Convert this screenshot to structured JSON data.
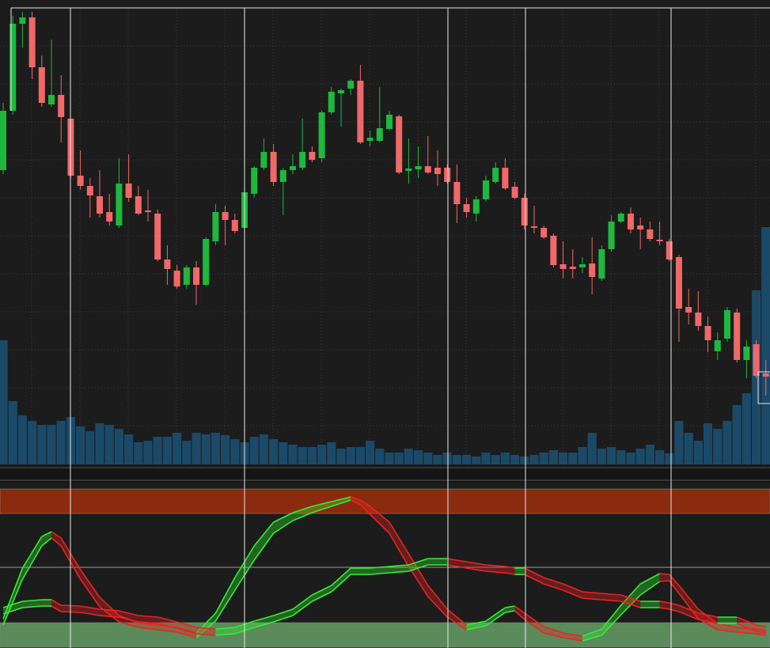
{
  "chart_data": [
    {
      "type": "candlestick",
      "xlim": [
        -0.33,
        79.43
      ],
      "ylim": [
        13,
        590
      ],
      "y2lim": [
        0,
        577
      ],
      "up_color": "#1fb83f",
      "down_color": "#f06868",
      "volume_color": "#1a4a68",
      "grid": true,
      "open": [
        385,
        460,
        570,
        578,
        515,
        468,
        480,
        450,
        378,
        365,
        352,
        332,
        315,
        368,
        352,
        334,
        330,
        272,
        258,
        240,
        262,
        240,
        295,
        332,
        322,
        312,
        355,
        388,
        408,
        370,
        385,
        388,
        408,
        400,
        458,
        482,
        488,
        498,
        422,
        422,
        437,
        453,
        384,
        386,
        390,
        388,
        388,
        370,
        342,
        330,
        348,
        370,
        388,
        364,
        350,
        314,
        312,
        302,
        266,
        263,
        262,
        267,
        248,
        285,
        320,
        330,
        315,
        310,
        297,
        295,
        275,
        212,
        205,
        188,
        156,
        172,
        205,
        145,
        165,
        128
      ],
      "high": [
        470,
        580,
        585,
        585,
        530,
        550,
        505,
        450,
        410,
        375,
        385,
        355,
        400,
        405,
        365,
        360,
        335,
        290,
        265,
        265,
        270,
        300,
        342,
        340,
        330,
        360,
        390,
        425,
        418,
        388,
        405,
        450,
        415,
        460,
        490,
        488,
        500,
        518,
        435,
        490,
        460,
        455,
        425,
        415,
        428,
        410,
        392,
        392,
        350,
        352,
        378,
        395,
        400,
        370,
        355,
        340,
        315,
        305,
        295,
        285,
        275,
        300,
        290,
        328,
        332,
        338,
        325,
        320,
        320,
        298,
        278,
        235,
        232,
        200,
        180,
        212,
        210,
        170,
        170,
        145
      ],
      "low": [
        380,
        455,
        540,
        500,
        465,
        465,
        420,
        375,
        360,
        325,
        325,
        315,
        312,
        345,
        328,
        320,
        270,
        240,
        235,
        235,
        215,
        238,
        290,
        290,
        305,
        310,
        350,
        385,
        365,
        328,
        380,
        385,
        395,
        395,
        455,
        440,
        480,
        418,
        415,
        420,
        435,
        380,
        368,
        375,
        380,
        365,
        368,
        318,
        325,
        320,
        345,
        368,
        360,
        348,
        310,
        305,
        298,
        262,
        248,
        248,
        255,
        228,
        245,
        282,
        318,
        305,
        285,
        295,
        290,
        270,
        168,
        190,
        182,
        155,
        145,
        168,
        142,
        122,
        122,
        100
      ],
      "close": [
        460,
        570,
        578,
        515,
        470,
        480,
        452,
        378,
        365,
        353,
        330,
        320,
        368,
        350,
        330,
        332,
        272,
        260,
        238,
        262,
        240,
        298,
        332,
        322,
        308,
        357,
        388,
        408,
        370,
        385,
        390,
        408,
        398,
        458,
        484,
        486,
        498,
        420,
        426,
        438,
        455,
        382,
        387,
        390,
        382,
        380,
        370,
        342,
        332,
        348,
        372,
        388,
        362,
        350,
        315,
        312,
        300,
        265,
        260,
        260,
        266,
        250,
        285,
        320,
        330,
        310,
        310,
        298,
        295,
        272,
        210,
        205,
        188,
        170,
        170,
        208,
        145,
        162,
        125,
        124
      ],
      "volume": [
        157,
        80,
        62,
        55,
        50,
        50,
        55,
        60,
        48,
        42,
        52,
        50,
        45,
        38,
        28,
        30,
        35,
        35,
        40,
        30,
        40,
        38,
        40,
        37,
        32,
        28,
        35,
        38,
        32,
        28,
        25,
        22,
        22,
        25,
        28,
        20,
        22,
        22,
        30,
        20,
        15,
        15,
        20,
        18,
        15,
        12,
        15,
        12,
        12,
        10,
        15,
        12,
        15,
        12,
        10,
        12,
        15,
        18,
        15,
        15,
        22,
        40,
        20,
        22,
        18,
        15,
        20,
        25,
        18,
        14,
        55,
        40,
        30,
        52,
        45,
        55,
        75,
        90,
        220,
        300
      ]
    },
    {
      "type": "band",
      "xlim": [
        -0.33,
        79.43
      ],
      "ylim": [
        0,
        206
      ],
      "up_color": "#33ee33",
      "down_color": "#ee2222",
      "midline": 101,
      "zones": [
        {
          "range": [
            169,
            200
          ],
          "color": "#8a2a0e"
        },
        {
          "range": [
            0,
            31
          ],
          "color": "#5b8a5b"
        }
      ],
      "x": [
        0,
        2,
        4,
        5,
        6,
        8,
        10,
        12,
        14,
        16,
        18,
        20,
        22,
        24,
        26,
        28,
        30,
        32,
        34,
        36,
        37,
        38,
        40,
        42,
        44,
        46,
        48,
        50,
        52,
        53,
        54,
        56,
        58,
        60,
        62,
        64,
        66,
        68,
        69,
        70,
        72,
        74,
        76,
        78,
        79
      ],
      "bands": [
        {
          "upper": [
            36,
            100,
            140,
            146,
            138,
            98,
            63,
            40,
            31,
            28,
            25,
            18,
            43,
            88,
            128,
            158,
            170,
            178,
            184,
            190,
            186,
            178,
            158,
            118,
            78,
            48,
            28,
            33,
            50,
            52,
            43,
            26,
            18,
            14,
            23,
            53,
            80,
            93,
            92,
            78,
            48,
            30,
            25,
            23,
            21
          ],
          "lower": [
            28,
            86,
            128,
            138,
            128,
            86,
            51,
            32,
            25,
            22,
            19,
            12,
            33,
            72,
            110,
            144,
            160,
            170,
            178,
            186,
            180,
            168,
            144,
            102,
            64,
            38,
            22,
            27,
            44,
            46,
            35,
            18,
            12,
            8,
            15,
            41,
            66,
            83,
            84,
            68,
            36,
            22,
            19,
            17,
            15
          ]
        },
        {
          "upper": [
            50,
            58,
            60,
            60,
            53,
            52,
            48,
            46,
            40,
            38,
            32,
            25,
            23,
            25,
            33,
            40,
            48,
            66,
            78,
            100,
            100,
            100,
            102,
            104,
            112,
            112,
            108,
            104,
            102,
            100,
            100,
            88,
            80,
            70,
            68,
            66,
            58,
            58,
            56,
            53,
            43,
            38,
            38,
            28,
            26
          ],
          "lower": [
            42,
            50,
            52,
            52,
            45,
            44,
            40,
            38,
            32,
            30,
            24,
            17,
            15,
            17,
            25,
            32,
            40,
            58,
            70,
            92,
            92,
            92,
            94,
            96,
            104,
            104,
            100,
            96,
            94,
            92,
            92,
            80,
            72,
            62,
            60,
            58,
            50,
            50,
            48,
            45,
            35,
            30,
            30,
            20,
            18
          ]
        }
      ]
    }
  ]
}
